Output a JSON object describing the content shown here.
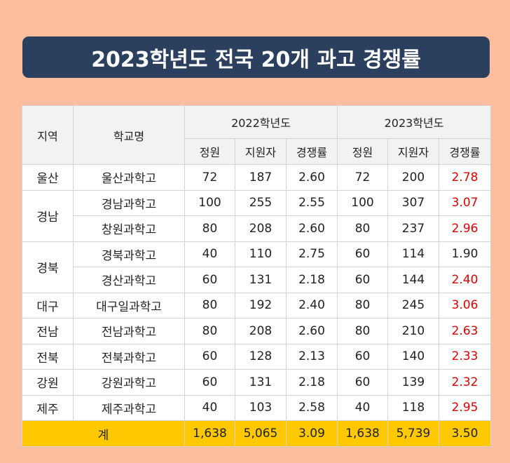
{
  "title": "2023학년도 전국 20개 과고 경쟁률",
  "headers": {
    "region": "지역",
    "school": "학교명",
    "year2022": "2022학년도",
    "year2023": "2023학년도",
    "quota": "정원",
    "applicants": "지원자",
    "ratio": "경쟁률"
  },
  "rows": [
    {
      "region": "울산",
      "school": "울산과학고",
      "q22": "72",
      "a22": "187",
      "r22": "2.60",
      "q23": "72",
      "a23": "200",
      "r23": "2.78",
      "r23_red": true
    },
    {
      "region": "경남",
      "school": "경남과학고",
      "q22": "100",
      "a22": "255",
      "r22": "2.55",
      "q23": "100",
      "a23": "307",
      "r23": "3.07",
      "r23_red": true
    },
    {
      "region": "",
      "school": "창원과학고",
      "q22": "80",
      "a22": "208",
      "r22": "2.60",
      "q23": "80",
      "a23": "237",
      "r23": "2.96",
      "r23_red": true
    },
    {
      "region": "경북",
      "school": "경북과학고",
      "q22": "40",
      "a22": "110",
      "r22": "2.75",
      "q23": "60",
      "a23": "114",
      "r23": "1.90",
      "r23_red": false
    },
    {
      "region": "",
      "school": "경산과학고",
      "q22": "60",
      "a22": "131",
      "r22": "2.18",
      "q23": "60",
      "a23": "144",
      "r23": "2.40",
      "r23_red": true
    },
    {
      "region": "대구",
      "school": "대구일과학고",
      "q22": "80",
      "a22": "192",
      "r22": "2.40",
      "q23": "80",
      "a23": "245",
      "r23": "3.06",
      "r23_red": true
    },
    {
      "region": "전남",
      "school": "전남과학고",
      "q22": "80",
      "a22": "208",
      "r22": "2.60",
      "q23": "80",
      "a23": "210",
      "r23": "2.63",
      "r23_red": true
    },
    {
      "region": "전북",
      "school": "전북과학고",
      "q22": "60",
      "a22": "128",
      "r22": "2.13",
      "q23": "60",
      "a23": "140",
      "r23": "2.33",
      "r23_red": true
    },
    {
      "region": "강원",
      "school": "강원과학고",
      "q22": "60",
      "a22": "131",
      "r22": "2.18",
      "q23": "60",
      "a23": "139",
      "r23": "2.32",
      "r23_red": true
    },
    {
      "region": "제주",
      "school": "제주과학고",
      "q22": "40",
      "a22": "103",
      "r22": "2.58",
      "q23": "40",
      "a23": "118",
      "r23": "2.95",
      "r23_red": true
    }
  ],
  "total": {
    "label": "계",
    "q22": "1,638",
    "a22": "5,065",
    "r22": "3.09",
    "q23": "1,638",
    "a23": "5,739",
    "r23": "3.50"
  },
  "colors": {
    "background": "#fdbe9f",
    "title_bar": "#2b3f5e",
    "total_row": "#ffc800",
    "highlight_text": "#e00000"
  }
}
